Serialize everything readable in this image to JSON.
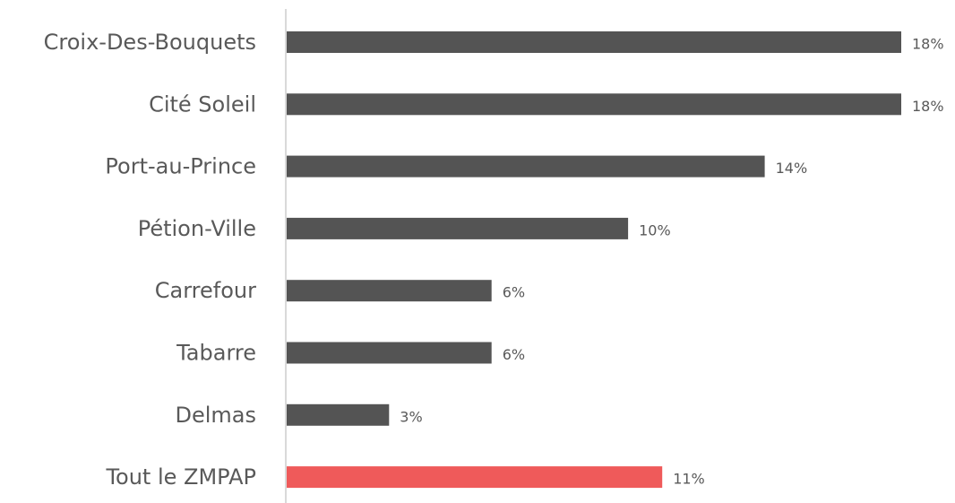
{
  "chart_data": {
    "type": "bar",
    "orientation": "horizontal",
    "categories": [
      "Croix-Des-Bouquets",
      "Cité Soleil",
      "Port-au-Prince",
      "Pétion-Ville",
      "Carrefour",
      "Tabarre",
      "Delmas",
      "Tout le ZMPAP"
    ],
    "values": [
      18,
      18,
      14,
      10,
      6,
      6,
      3,
      11
    ],
    "value_labels": [
      "18%",
      "18%",
      "14%",
      "10%",
      "6%",
      "6%",
      "3%",
      "11%"
    ],
    "unit": "%",
    "xlim": [
      0,
      18
    ],
    "grid": false,
    "legend": false,
    "colors": {
      "default": "#545454",
      "highlight": "#ef5a5a",
      "axis": "#d9d9d9",
      "text": "#595959"
    },
    "highlight_category": "Tout le ZMPAP"
  }
}
